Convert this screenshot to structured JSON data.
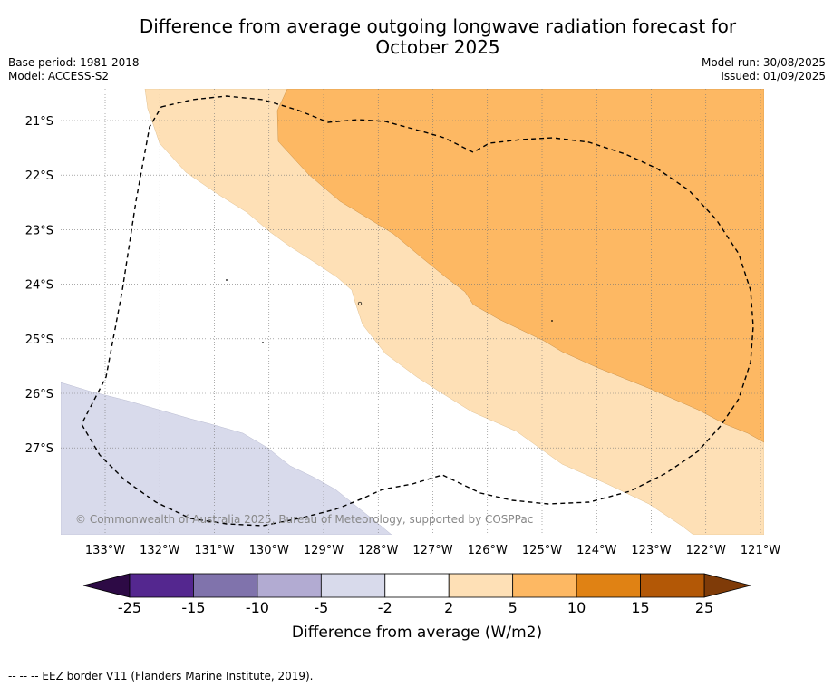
{
  "title_line1": "Difference from average outgoing longwave radiation forecast for",
  "title_line2": "October 2025",
  "meta_left": {
    "base_period": "Base period: 1981-2018",
    "model": "Model: ACCESS-S2"
  },
  "meta_right": {
    "model_run": "Model run: 30/08/2025",
    "issued": "Issued: 01/09/2025"
  },
  "map": {
    "lat_labels": [
      "21°S",
      "22°S",
      "23°S",
      "24°S",
      "25°S",
      "26°S",
      "27°S"
    ],
    "lon_labels": [
      "133°W",
      "132°W",
      "131°W",
      "130°W",
      "129°W",
      "128°W",
      "127°W",
      "126°W",
      "125°W",
      "124°W",
      "123°W",
      "122°W",
      "121°W"
    ],
    "copyright": "© Commonwealth of Australia 2025, Bureau of Meteorology, supported by COSPPac"
  },
  "colorbar": {
    "label": "Difference from average (W/m2)",
    "ticks": [
      "-25",
      "-15",
      "-10",
      "-5",
      "-2",
      "2",
      "5",
      "10",
      "15",
      "25"
    ],
    "colors": {
      "below_-25": "#2d0a45",
      "-25_-15": "#54278f",
      "-15_-10": "#8073ac",
      "-10_-5": "#b2abd2",
      "-5_-2": "#d8daeb",
      "-2_2": "#ffffff",
      "2_5": "#fee0b6",
      "5_10": "#fdb863",
      "10_15": "#e08214",
      "15_25": "#b35806",
      "above_25": "#7f3b08"
    }
  },
  "footer": "--  --  -- EEZ border V11 (Flanders Marine Institute, 2019)."
}
